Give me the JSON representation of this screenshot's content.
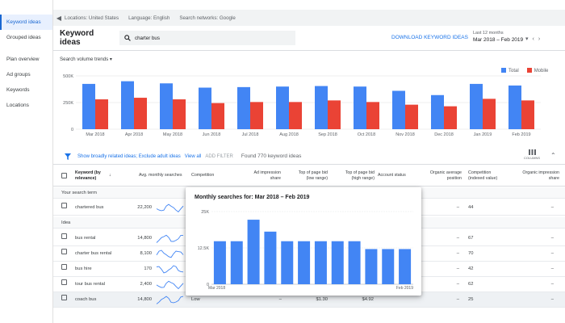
{
  "sidebar": {
    "items": [
      {
        "label": "Keyword ideas",
        "active": true
      },
      {
        "label": "Grouped ideas"
      },
      {
        "label": "Plan overview"
      },
      {
        "label": "Ad groups"
      },
      {
        "label": "Keywords"
      },
      {
        "label": "Locations"
      }
    ]
  },
  "topbar": {
    "locations": "Locations: United States",
    "language": "Language: English",
    "networks": "Search networks: Google"
  },
  "header": {
    "title": "Keyword ideas",
    "search_value": "charter bus",
    "download": "DOWNLOAD KEYWORD IDEAS",
    "range_label": "Last 12 months",
    "range_value": "Mar 2018 – Feb 2019"
  },
  "trends": {
    "label": "Search volume trends",
    "legend_total": "Total",
    "legend_mobile": "Mobile",
    "colors": {
      "total": "#4285f4",
      "mobile": "#ea4335"
    }
  },
  "chart_data": [
    {
      "type": "bar",
      "title": "",
      "categories": [
        "Mar 2018",
        "Apr 2018",
        "May 2018",
        "Jun 2018",
        "Jul 2018",
        "Aug 2018",
        "Sep 2018",
        "Oct 2018",
        "Nov 2018",
        "Dec 2018",
        "Jan 2019",
        "Feb 2019"
      ],
      "series": [
        {
          "name": "Total",
          "values": [
            425000,
            450000,
            430000,
            390000,
            395000,
            400000,
            405000,
            400000,
            360000,
            320000,
            425000,
            410000
          ]
        },
        {
          "name": "Mobile",
          "values": [
            280000,
            295000,
            280000,
            245000,
            255000,
            255000,
            270000,
            255000,
            230000,
            215000,
            285000,
            270000
          ]
        }
      ],
      "yticks": [
        "0",
        "250K",
        "500K"
      ],
      "ylim": [
        0,
        500000
      ],
      "legend": "top-right"
    },
    {
      "type": "bar",
      "title": "Monthly searches for: Mar 2018 – Feb 2019",
      "categories": [
        "Mar 2018",
        "Apr 2018",
        "May 2018",
        "Jun 2018",
        "Jul 2018",
        "Aug 2018",
        "Sep 2018",
        "Oct 2018",
        "Nov 2018",
        "Dec 2018",
        "Jan 2019",
        "Feb 2019"
      ],
      "series": [
        {
          "name": "",
          "values": [
            14800,
            14800,
            22200,
            18100,
            14800,
            14800,
            14800,
            14800,
            14800,
            12100,
            12100,
            12100
          ]
        }
      ],
      "yticks": [
        "0",
        "12.5K",
        "25K"
      ],
      "ylim": [
        0,
        25000
      ],
      "xlabels": [
        "Mar 2018",
        "Feb 2019"
      ]
    }
  ],
  "filter": {
    "text": "Show broadly related ideas; Exclude adult ideas",
    "view_all": "View all",
    "add_filter": "ADD FILTER",
    "found": "Found 770 keyword ideas",
    "columns": "COLUMNS"
  },
  "columns": {
    "keyword": "Keyword (by relevance)",
    "avg": "Avg. monthly searches",
    "competition": "Competition",
    "impression": "Ad impression share",
    "top_low": "Top of page bid (low range)",
    "top_high": "Top of page bid (high range)",
    "status": "Account status",
    "org_pos": "Organic average position",
    "comp_idx": "Competition (indexed value)",
    "org_imp": "Organic impression share"
  },
  "sections": {
    "search_term": "Your search term",
    "idea": "Idea"
  },
  "rows": [
    {
      "keyword": "chartered bus",
      "avg": "22,200",
      "competition": "",
      "impression": "",
      "low": "",
      "high": "",
      "org_pos": "–",
      "comp_idx": "44",
      "org_imp": "–"
    },
    {
      "keyword": "bus rental",
      "avg": "14,800",
      "competition": "",
      "impression": "",
      "low": "",
      "high": "",
      "org_pos": "–",
      "comp_idx": "67",
      "org_imp": "–"
    },
    {
      "keyword": "charter bus rental",
      "avg": "8,100",
      "competition": "",
      "impression": "",
      "low": "",
      "high": "",
      "org_pos": "–",
      "comp_idx": "70",
      "org_imp": "–"
    },
    {
      "keyword": "bus hire",
      "avg": "170",
      "competition": "",
      "impression": "",
      "low": "",
      "high": "",
      "org_pos": "–",
      "comp_idx": "42",
      "org_imp": "–"
    },
    {
      "keyword": "tour bus rental",
      "avg": "2,400",
      "competition": "",
      "impression": "",
      "low": "",
      "high": "",
      "org_pos": "–",
      "comp_idx": "62",
      "org_imp": "–"
    },
    {
      "keyword": "coach bus",
      "avg": "14,800",
      "competition": "Low",
      "impression": "–",
      "low": "$1.30",
      "high": "$4.92",
      "org_pos": "–",
      "comp_idx": "25",
      "org_imp": "–"
    }
  ]
}
